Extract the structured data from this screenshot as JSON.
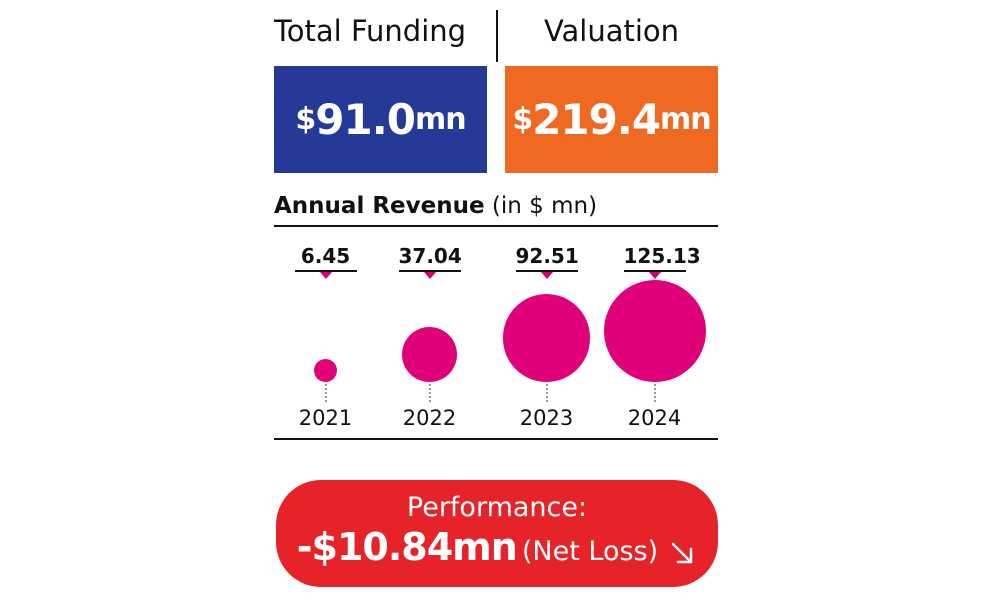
{
  "header": {
    "funding_label": "Total Funding",
    "valuation_label": "Valuation"
  },
  "funding": {
    "currency": "$",
    "amount": "91.0",
    "unit": "mn",
    "color": "#243a96"
  },
  "valuation": {
    "currency": "$",
    "amount": "219.4",
    "unit": "mn",
    "color": "#ef6922"
  },
  "revenue": {
    "title_bold": "Annual Revenue",
    "title_unit": "(in $ mn)"
  },
  "chart_data": {
    "type": "bubble",
    "title": "Annual Revenue (in $ mn)",
    "categories": [
      "2021",
      "2022",
      "2023",
      "2024"
    ],
    "value_labels": [
      "6.45",
      "37.04",
      "92.51",
      "125.13"
    ],
    "values": [
      6.45,
      37.04,
      92.51,
      125.13
    ],
    "color": "#e0007a",
    "legend": "none",
    "grid": false
  },
  "performance": {
    "label": "Performance:",
    "value": "-$10.84mn",
    "note": "(Net Loss)",
    "icon": "arrow-down-right-icon",
    "color": "#e62329"
  }
}
